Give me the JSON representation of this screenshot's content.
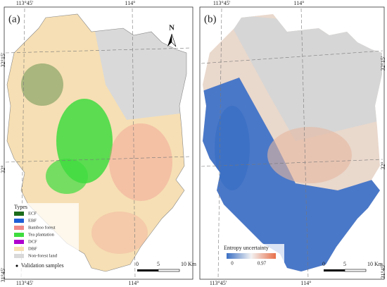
{
  "panels": [
    {
      "label": "(a)",
      "top_ticks": [
        "113°45'",
        "114°"
      ],
      "side_ticks": [
        "32°15'",
        "32°",
        "31°45'"
      ],
      "bottom_ticks": [
        "113°45'",
        "114°"
      ],
      "north": "N",
      "legend": {
        "title": "Types",
        "items": [
          {
            "name": "ECF",
            "color": "#1b6b1b"
          },
          {
            "name": "EBF",
            "color": "#1f5fd6"
          },
          {
            "name": "Bamboo forest",
            "color": "#f08a8a"
          },
          {
            "name": "Tea plantation",
            "color": "#3fdc3f"
          },
          {
            "name": "DCF",
            "color": "#b000d0"
          },
          {
            "name": "DBF",
            "color": "#f6dfb4"
          },
          {
            "name": "Non-forest land",
            "color": "#d9d9d9"
          }
        ],
        "samples": "Validation samples"
      },
      "scale": [
        "0",
        "5",
        "10 Km"
      ]
    },
    {
      "label": "(b)",
      "top_ticks": [
        "113°45'",
        "114°"
      ],
      "side_ticks": [
        "32°15'",
        "32°",
        "31°45'"
      ],
      "bottom_ticks": [
        "113°45'",
        "114°"
      ],
      "colorbar": {
        "title": "Entropy uncertainty",
        "min": 0,
        "max": 0.97,
        "colors": [
          "#3a6fc4",
          "#f2f2f2",
          "#e8704a"
        ]
      },
      "scale": [
        "0",
        "5",
        "10 Km"
      ]
    }
  ]
}
